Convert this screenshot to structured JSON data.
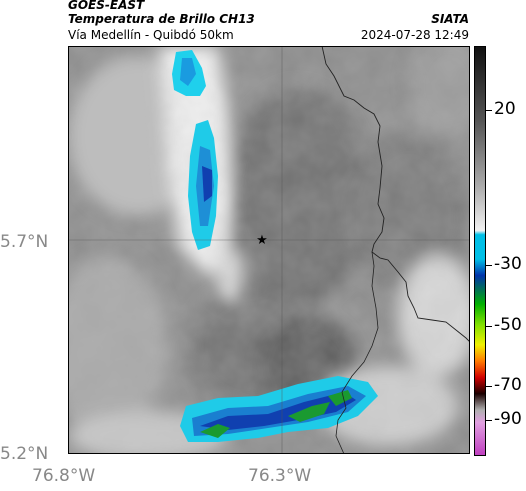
{
  "header": {
    "satellite": "GOES-EAST",
    "product": "Temperatura de Brillo CH13",
    "route": "Vía Medellín - Quibdó 50km",
    "brand": "SIATA",
    "datetime": "2024-07-28 12:49"
  },
  "axes": {
    "y_ticks": [
      "5.7°N",
      "5.2°N"
    ],
    "x_ticks": [
      "76.8°W",
      "76.3°W"
    ]
  },
  "colorbar": {
    "labels": [
      "20",
      "-30",
      "-50",
      "-70",
      "-90"
    ],
    "colors": {
      "warm_top": "#111111",
      "warm_bottom": "#f2f2f2",
      "cyan": "#00bfe6",
      "blue": "#0033aa",
      "green": "#00b000",
      "yellow": "#f0f000",
      "orange": "#ff7a00",
      "red": "#d00000",
      "dark": "#1a0000",
      "magenta": "#c040c0"
    }
  },
  "map": {
    "marker_icon": "star-icon",
    "colors": {
      "land_dark": "#6e6e6e",
      "land_mid": "#9a9a9a",
      "cloud_white": "#f4f4f4",
      "cloud_cyan": "#15c8e8",
      "cloud_blue": "#1040b0",
      "cloud_green": "#1a9a30",
      "border": "#222222"
    }
  }
}
